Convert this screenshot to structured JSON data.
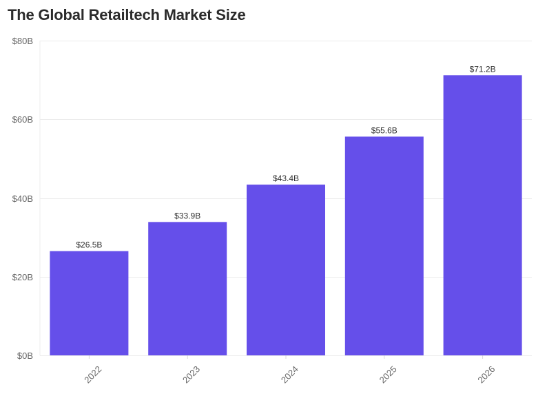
{
  "chart_data": {
    "type": "bar",
    "title": "The Global Retailtech Market Size",
    "categories": [
      "2022",
      "2023",
      "2024",
      "2025",
      "2026"
    ],
    "values": [
      26.5,
      33.9,
      43.4,
      55.6,
      71.2
    ],
    "data_labels": [
      "$26.5B",
      "$33.9B",
      "$43.4B",
      "$55.6B",
      "$71.2B"
    ],
    "y_ticks": [
      0,
      20,
      40,
      60,
      80
    ],
    "y_tick_labels": [
      "$0B",
      "$20B",
      "$40B",
      "$60B",
      "$80B"
    ],
    "ylim": [
      0,
      80
    ],
    "grid": true,
    "bar_color": "#654fea",
    "grid_color": "#ececec"
  }
}
